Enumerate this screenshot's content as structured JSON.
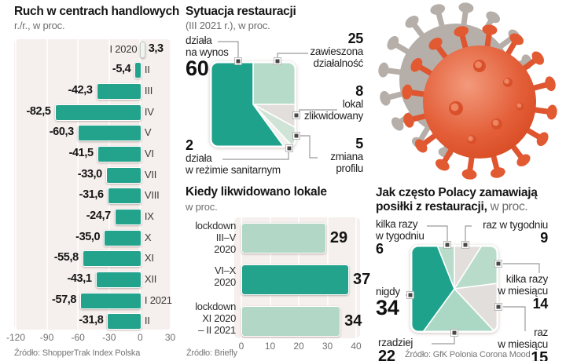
{
  "colors": {
    "teal_dark": "#23a28c",
    "teal_light": "#b2d7c6",
    "slice_gray": "#e2dedc",
    "panel_bg": "#f5efed",
    "virus_red": "#dc4d28",
    "virus_gray": "#b6afa9"
  },
  "decorations": {
    "virus_icon": "coronavirus-3d"
  },
  "chart_data": [
    {
      "type": "bar",
      "orientation": "horizontal",
      "title": "Ruch w centrach handlowych",
      "subtitle": "r./r., w proc.",
      "source": "Źródło: ShopperTrak Index Polska",
      "xlim": [
        -120,
        30
      ],
      "ticks": [
        "-120",
        "-90",
        "-60",
        "-30",
        "0",
        "30"
      ],
      "rows": [
        {
          "label": "I 2020",
          "value": 3.3,
          "value_label": "3,3"
        },
        {
          "label": "II",
          "value": -5.4,
          "value_label": "-5,4"
        },
        {
          "label": "III",
          "value": -42.3,
          "value_label": "-42,3"
        },
        {
          "label": "IV",
          "value": -82.5,
          "value_label": "-82,5"
        },
        {
          "label": "V",
          "value": -60.3,
          "value_label": "-60,3"
        },
        {
          "label": "VI",
          "value": -41.5,
          "value_label": "-41,5"
        },
        {
          "label": "VII",
          "value": -33.0,
          "value_label": "-33,0"
        },
        {
          "label": "VIII",
          "value": -31.6,
          "value_label": "-31,6"
        },
        {
          "label": "IX",
          "value": -24.7,
          "value_label": "-24,7"
        },
        {
          "label": "X",
          "value": -35.0,
          "value_label": "-35,0"
        },
        {
          "label": "XI",
          "value": -55.8,
          "value_label": "-55,8"
        },
        {
          "label": "XII",
          "value": -43.1,
          "value_label": "-43,1"
        },
        {
          "label": "I 2021",
          "value": -57.8,
          "value_label": "-57,8"
        },
        {
          "label": "II",
          "value": -31.8,
          "value_label": "-31,8"
        }
      ]
    },
    {
      "type": "pie",
      "shape": "rounded-square",
      "start": "top",
      "direction": "clockwise",
      "title": "Sytuacja restauracji",
      "subtitle": "(III 2021 r.), w proc.",
      "slices": [
        {
          "label": "zawieszona działalność",
          "lines": [
            "zawieszona",
            "działalność"
          ],
          "value": 25,
          "value_label": "25",
          "color": "#b7dbc9"
        },
        {
          "label": "lokal zlikwidowany",
          "lines": [
            "lokal",
            "zlikwidowany"
          ],
          "value": 8,
          "value_label": "8",
          "color": "#e2dedc"
        },
        {
          "label": "zmiana profilu",
          "lines": [
            "zmiana",
            "profilu"
          ],
          "value": 5,
          "value_label": "5",
          "color": "#cfe3d6"
        },
        {
          "label": "działa w reżimie sanitarnym",
          "lines": [
            "działa",
            "w reżimie sanitarnym"
          ],
          "value": 2,
          "value_label": "2",
          "color": "#f1f2ee"
        },
        {
          "label": "działa na wynos",
          "lines": [
            "działa",
            "na wynos"
          ],
          "value": 60,
          "value_label": "60",
          "color": "#1fa28b"
        }
      ]
    },
    {
      "type": "bar",
      "orientation": "horizontal",
      "title": "Kiedy likwidowano lokale",
      "subtitle": "w proc.",
      "source": "Źródło: Briefly",
      "xlim": [
        0,
        40
      ],
      "ticks": [
        "0",
        "10",
        "20",
        "30",
        "40"
      ],
      "rows": [
        {
          "label": "lockdown III–V 2020",
          "lines": [
            "lockdown",
            "III–V",
            "2020"
          ],
          "value": 29,
          "value_label": "29",
          "shade": "light"
        },
        {
          "label": "VI–X 2020",
          "lines": [
            "VI–X",
            "2020"
          ],
          "value": 37,
          "value_label": "37",
          "shade": "dark"
        },
        {
          "label": "lockdown XI 2020 – II 2021",
          "lines": [
            "lockdown",
            "XI 2020",
            "– II 2021"
          ],
          "value": 34,
          "value_label": "34",
          "shade": "light"
        }
      ]
    },
    {
      "type": "pie",
      "shape": "rounded-square",
      "start": "top",
      "direction": "clockwise",
      "title_line1": "Jak często Polacy zamawiają",
      "title_line2_bold": "posiłki z restauracji,",
      "title_line2_light": " w proc.",
      "source": "Źródło: GfK Polonia Corona Mood",
      "slices": [
        {
          "label": "raz w tygodniu",
          "lines": [
            "raz w tygodniu"
          ],
          "value": 9,
          "value_label": "9",
          "color": "#e2dedc"
        },
        {
          "label": "kilka razy w miesiącu",
          "lines": [
            "kilka razy",
            "w miesiącu"
          ],
          "value": 14,
          "value_label": "14",
          "color": "#b9dcca"
        },
        {
          "label": "raz w miesiącu",
          "lines": [
            "raz",
            "w miesiącu"
          ],
          "value": 15,
          "value_label": "15",
          "color": "#e2dedc"
        },
        {
          "label": "rzadziej",
          "lines": [
            "rzadziej"
          ],
          "value": 22,
          "value_label": "22",
          "color": "#abd7c5"
        },
        {
          "label": "nigdy",
          "lines": [
            "nigdy"
          ],
          "value": 34,
          "value_label": "34",
          "color": "#1fa28b"
        },
        {
          "label": "kilka razy w tygodniu",
          "lines": [
            "kilka razy",
            "w tygodniu"
          ],
          "value": 6,
          "value_label": "6",
          "color": "#b9dcca"
        }
      ]
    }
  ]
}
